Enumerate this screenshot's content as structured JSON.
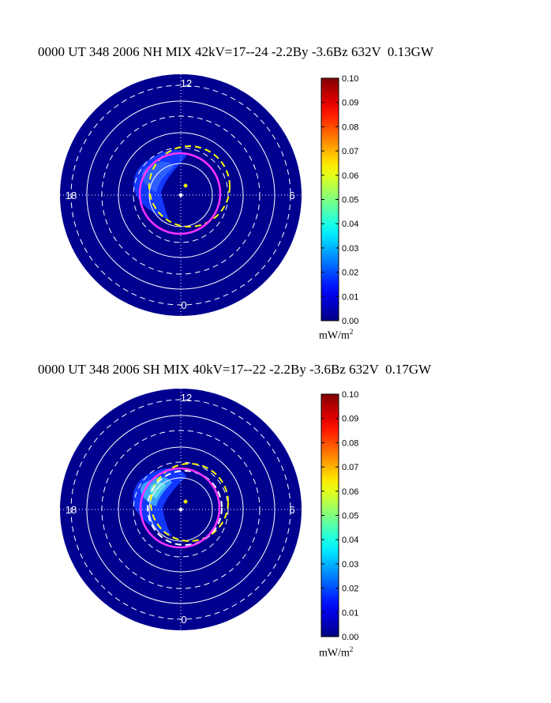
{
  "chart_data": [
    {
      "type": "heatmap",
      "title": "0000 UT 348 2006 NH MIX 42kV=17--24 -2.2By -3.6Bz 632V  0.13GW",
      "mlt_labels": [
        "12",
        "6",
        "0",
        "18"
      ],
      "colorbar": {
        "unit_text": "mW/m",
        "unit_exp": "2",
        "min": 0.0,
        "max": 0.1,
        "ticks": [
          "0.00",
          "0.01",
          "0.02",
          "0.03",
          "0.04",
          "0.05",
          "0.06",
          "0.07",
          "0.08",
          "0.09",
          "0.10"
        ],
        "colormap": "jet"
      },
      "background_color": "#00008f",
      "pole_marker_color": "#ffffff",
      "offset_marker_color": "#ffff00",
      "boundary_colors": {
        "magenta": "#ff33ff",
        "yellow_dashed": "#ffff00"
      }
    },
    {
      "type": "heatmap",
      "title": "0000 UT 348 2006 SH MIX 40kV=17--22 -2.2By -3.6Bz 632V  0.17GW",
      "mlt_labels": [
        "12",
        "6",
        "0",
        "18"
      ],
      "colorbar": {
        "unit_text": "mW/m",
        "unit_exp": "2",
        "min": 0.0,
        "max": 0.1,
        "ticks": [
          "0.00",
          "0.01",
          "0.02",
          "0.03",
          "0.04",
          "0.05",
          "0.06",
          "0.07",
          "0.08",
          "0.09",
          "0.10"
        ],
        "colormap": "jet"
      },
      "background_color": "#00008f",
      "pole_marker_color": "#ffffff",
      "offset_marker_color": "#ffff00",
      "boundary_colors": {
        "magenta": "#ff33ff",
        "yellow_dashed": "#ffff00",
        "white_dashed": "#ffffff"
      }
    }
  ]
}
